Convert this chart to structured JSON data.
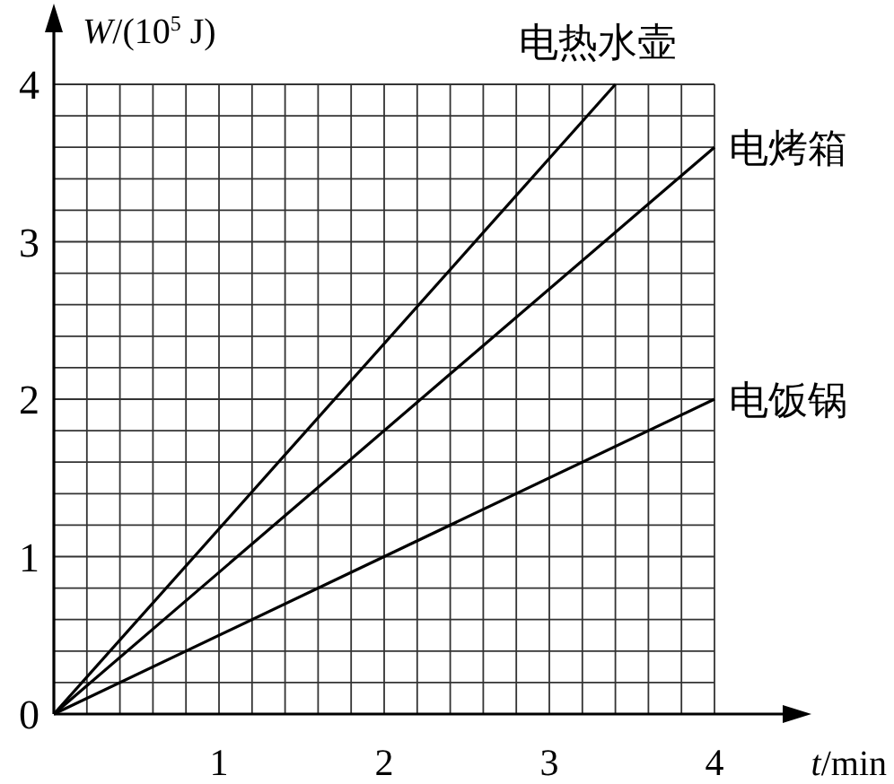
{
  "chart_data": {
    "type": "line",
    "xlabel": "*t*/min",
    "ylabel": "*W*/(10$^{5}$ J)",
    "xlim": [
      0,
      4
    ],
    "ylim": [
      0,
      4
    ],
    "xticks": [
      {
        "value": 0,
        "label": null
      },
      {
        "value": 0.2,
        "label": null
      },
      {
        "value": 0.4,
        "label": null
      },
      {
        "value": 0.6,
        "label": null
      },
      {
        "value": 0.8,
        "label": null
      },
      1,
      {
        "value": 1.2,
        "label": null
      },
      {
        "value": 1.4,
        "label": null
      },
      {
        "value": 1.6,
        "label": null
      },
      {
        "value": 1.8,
        "label": null
      },
      2,
      {
        "value": 2.2,
        "label": null
      },
      {
        "value": 2.4,
        "label": null
      },
      {
        "value": 2.6,
        "label": null
      },
      {
        "value": 2.8,
        "label": null
      },
      3,
      {
        "value": 3.2,
        "label": null
      },
      {
        "value": 3.4,
        "label": null
      },
      {
        "value": 3.6,
        "label": null
      },
      {
        "value": 3.8,
        "label": null
      },
      4
    ],
    "yticks": [
      0,
      {
        "value": 0.2,
        "label": null
      },
      {
        "value": 0.4,
        "label": null
      },
      {
        "value": 0.6,
        "label": null
      },
      {
        "value": 0.8,
        "label": null
      },
      1,
      {
        "value": 1.2,
        "label": null
      },
      {
        "value": 1.4,
        "label": null
      },
      {
        "value": 1.6,
        "label": null
      },
      {
        "value": 1.8,
        "label": null
      },
      2,
      {
        "value": 2.2,
        "label": null
      },
      {
        "value": 2.4,
        "label": null
      },
      {
        "value": 2.6,
        "label": null
      },
      {
        "value": 2.8,
        "label": null
      },
      3,
      {
        "value": 3.2,
        "label": null
      },
      {
        "value": 3.4,
        "label": null
      },
      {
        "value": 3.6,
        "label": null
      },
      {
        "value": 3.8,
        "label": null
      },
      4
    ],
    "grid": true,
    "series": [
      {
        "name": "电热水壶",
        "color": "#000000",
        "x": [
          0,
          3.4
        ],
        "values": [
          0,
          4
        ]
      },
      {
        "name": "电烤箱",
        "color": "#000000",
        "x": [
          0,
          4
        ],
        "values": [
          0,
          3.6
        ]
      },
      {
        "name": "电饭锅",
        "color": "#000000",
        "x": [
          0,
          4
        ],
        "values": [
          0,
          2
        ]
      }
    ]
  }
}
